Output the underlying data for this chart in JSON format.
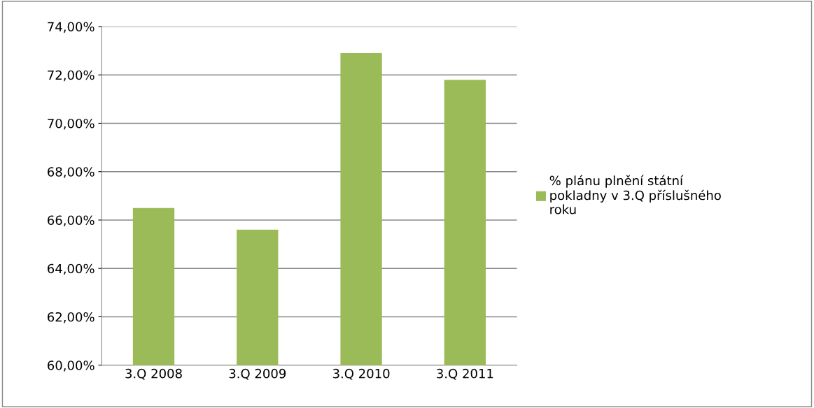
{
  "chart_data": {
    "type": "bar",
    "categories": [
      "3.Q 2008",
      "3.Q 2009",
      "3.Q 2010",
      "3.Q 2011"
    ],
    "series": [
      {
        "name": "% plánu plnění státní pokladny v 3.Q příslušného roku",
        "color": "#9bbb59",
        "values": [
          66.5,
          65.6,
          72.9,
          71.8
        ]
      }
    ],
    "ylim": [
      60,
      74
    ],
    "yticks": [
      {
        "value": 60,
        "label": "60,00%"
      },
      {
        "value": 62,
        "label": "62,00%"
      },
      {
        "value": 64,
        "label": "64,00%"
      },
      {
        "value": 66,
        "label": "66,00%"
      },
      {
        "value": 68,
        "label": "68,00%"
      },
      {
        "value": 70,
        "label": "70,00%"
      },
      {
        "value": 72,
        "label": "72,00%"
      },
      {
        "value": 74,
        "label": "74,00%"
      }
    ],
    "grid": "y",
    "legend": "right"
  }
}
